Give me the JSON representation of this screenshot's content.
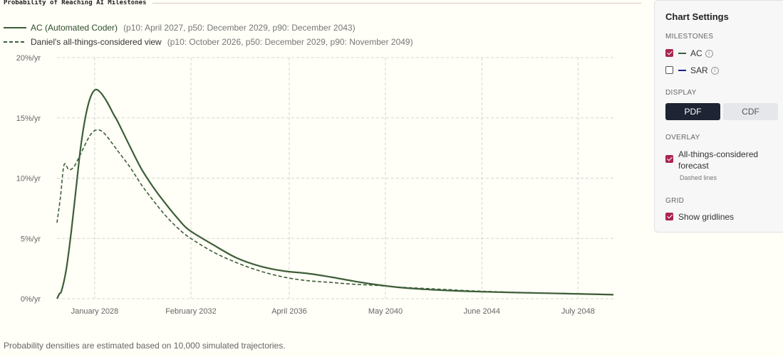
{
  "chart_title": "Probability of Reaching AI Milestones",
  "footnote": "Probability densities are estimated based on 10,000 simulated trajectories.",
  "legend": [
    {
      "name": "AC (Automated Coder)",
      "detail": "(p10: April 2027, p50: December 2029, p90: December 2043)",
      "style": "solid"
    },
    {
      "name": "Daniel's all-things-considered view",
      "detail": "(p10: October 2026, p50: December 2029, p90: November 2049)",
      "style": "dashed"
    }
  ],
  "colors": {
    "series": "#3d5e38",
    "accent": "#a8274f",
    "grid": "#d5d5d5",
    "dark_button": "#1e2433",
    "sar": "#1a237e"
  },
  "panel": {
    "title": "Chart Settings",
    "milestones_label": "MILESTONES",
    "milestones": [
      {
        "label": "AC",
        "checked": true
      },
      {
        "label": "SAR",
        "checked": false
      }
    ],
    "display_label": "DISPLAY",
    "display_options": [
      "PDF",
      "CDF"
    ],
    "display_selected": "PDF",
    "overlay_label": "OVERLAY",
    "overlay_option": "All-things-considered forecast",
    "overlay_checked": true,
    "overlay_note": "Dashed lines",
    "grid_label": "GRID",
    "grid_option": "Show gridlines",
    "grid_checked": true
  },
  "chart_data": {
    "type": "line",
    "x_unit": "year",
    "xlim": [
      2026.4,
      2050.0
    ],
    "ylim": [
      0,
      20
    ],
    "y_ticks": [
      {
        "value": 0,
        "label": "0%/yr"
      },
      {
        "value": 5,
        "label": "5%/yr"
      },
      {
        "value": 10,
        "label": "10%/yr"
      },
      {
        "value": 15,
        "label": "15%/yr"
      },
      {
        "value": 20,
        "label": "20%/yr"
      }
    ],
    "x_ticks": [
      {
        "value": 2028.0,
        "label": "January 2028"
      },
      {
        "value": 2032.08,
        "label": "February 2032"
      },
      {
        "value": 2036.25,
        "label": "April 2036"
      },
      {
        "value": 2040.33,
        "label": "May 2040"
      },
      {
        "value": 2044.42,
        "label": "June 2044"
      },
      {
        "value": 2048.5,
        "label": "July 2048"
      }
    ],
    "grid": true,
    "series": [
      {
        "name": "AC (Automated Coder)",
        "style": "solid",
        "x": [
          2026.4,
          2026.5,
          2026.6,
          2026.8,
          2027.0,
          2027.2,
          2027.4,
          2027.6,
          2027.8,
          2028.0,
          2028.2,
          2028.5,
          2028.8,
          2029.0,
          2029.5,
          2030.0,
          2030.5,
          2031.0,
          2031.5,
          2032.0,
          2033.0,
          2034.0,
          2035.0,
          2036.0,
          2037.0,
          2038.0,
          2039.0,
          2040.0,
          2041.0,
          2042.0,
          2043.0,
          2044.0,
          2045.0,
          2046.0,
          2047.0,
          2048.0,
          2049.0,
          2050.0
        ],
        "values": [
          0.0,
          0.4,
          0.7,
          2.5,
          5.5,
          9.0,
          12.5,
          15.0,
          16.6,
          17.3,
          17.2,
          16.4,
          15.3,
          14.6,
          12.6,
          10.7,
          9.2,
          7.9,
          6.7,
          5.7,
          4.5,
          3.4,
          2.7,
          2.3,
          2.1,
          1.8,
          1.45,
          1.15,
          0.92,
          0.78,
          0.68,
          0.6,
          0.55,
          0.5,
          0.46,
          0.42,
          0.38,
          0.33
        ]
      },
      {
        "name": "Daniel's all-things-considered view",
        "style": "dashed",
        "x": [
          2026.4,
          2026.55,
          2026.7,
          2026.9,
          2027.1,
          2027.3,
          2027.5,
          2027.7,
          2027.9,
          2028.1,
          2028.3,
          2028.5,
          2028.7,
          2029.0,
          2029.5,
          2030.0,
          2030.5,
          2031.0,
          2031.5,
          2032.0,
          2033.0,
          2034.0,
          2035.0,
          2036.0,
          2037.0,
          2038.0,
          2039.0,
          2040.0,
          2041.0,
          2042.0,
          2043.0,
          2044.0,
          2045.0,
          2046.0,
          2047.0,
          2048.0,
          2049.0,
          2050.0
        ],
        "values": [
          6.3,
          8.5,
          11.1,
          10.7,
          10.9,
          11.6,
          12.4,
          13.2,
          13.8,
          14.0,
          13.9,
          13.5,
          13.0,
          12.2,
          10.9,
          9.4,
          8.1,
          6.9,
          5.9,
          5.1,
          3.9,
          3.0,
          2.3,
          1.8,
          1.5,
          1.35,
          1.2,
          1.1,
          0.95,
          0.85,
          0.75,
          0.65,
          0.58,
          0.52,
          0.47,
          0.43,
          0.39,
          0.34
        ]
      }
    ]
  }
}
